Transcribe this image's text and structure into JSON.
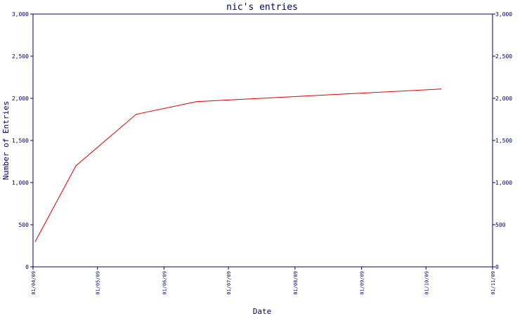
{
  "chart_data": {
    "type": "line",
    "title": "nic's entries",
    "xlabel": "Date",
    "ylabel": "Number of Entries",
    "xlim": [
      "2009-04-01",
      "2009-11-01"
    ],
    "ylim": [
      0,
      3000
    ],
    "x_ticks": [
      "01/04/09",
      "01/05/09",
      "01/06/09",
      "01/07/09",
      "01/08/09",
      "01/09/09",
      "01/10/09",
      "01/11/09"
    ],
    "y_ticks": [
      "0",
      "500",
      "1,000",
      "1,500",
      "2,000",
      "2,500",
      "3,000"
    ],
    "grid": false,
    "series": [
      {
        "color": "#dd0000",
        "points": [
          {
            "x": "2009-04-02",
            "y": 300
          },
          {
            "x": "2009-04-21",
            "y": 1200
          },
          {
            "x": "2009-05-19",
            "y": 1810
          },
          {
            "x": "2009-06-16",
            "y": 1960
          },
          {
            "x": "2009-07-01",
            "y": 1980
          },
          {
            "x": "2009-10-08",
            "y": 2110
          }
        ]
      }
    ]
  },
  "colors": {
    "axis": "#000066",
    "text": "#000066"
  }
}
